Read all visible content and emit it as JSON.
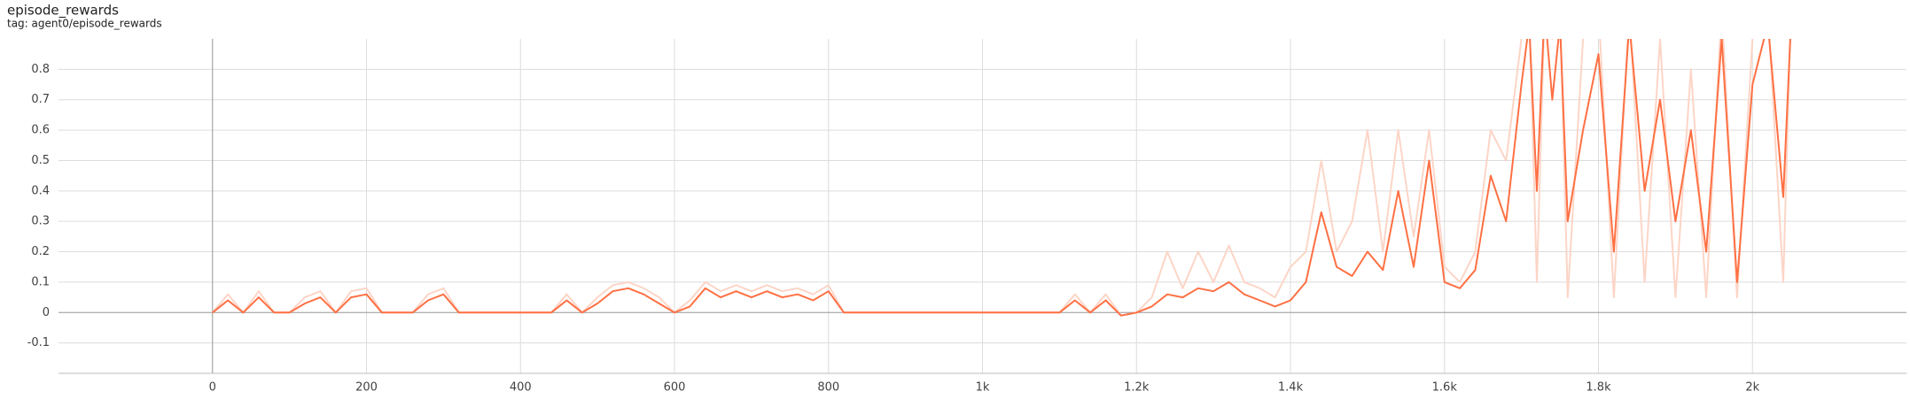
{
  "header": {
    "title": "episode_rewards",
    "tag": "tag: agent0/episode_rewards"
  },
  "chart_data": {
    "type": "line",
    "x": [
      0,
      20,
      40,
      60,
      80,
      100,
      120,
      140,
      160,
      180,
      200,
      220,
      240,
      260,
      280,
      300,
      320,
      340,
      360,
      380,
      400,
      420,
      440,
      460,
      480,
      500,
      520,
      540,
      560,
      580,
      600,
      620,
      640,
      660,
      680,
      700,
      720,
      740,
      760,
      780,
      800,
      820,
      840,
      860,
      880,
      900,
      920,
      940,
      960,
      980,
      1000,
      1020,
      1040,
      1060,
      1080,
      1100,
      1120,
      1140,
      1160,
      1180,
      1200,
      1220,
      1240,
      1260,
      1280,
      1300,
      1320,
      1340,
      1360,
      1380,
      1400,
      1420,
      1440,
      1460,
      1480,
      1500,
      1520,
      1540,
      1560,
      1580,
      1600,
      1620,
      1640,
      1660,
      1680,
      1700,
      1710,
      1720,
      1730,
      1740,
      1750,
      1760,
      1780,
      1800,
      1820,
      1840,
      1860,
      1880,
      1900,
      1920,
      1940,
      1960,
      1980,
      2000,
      2020,
      2040,
      2050
    ],
    "series": [
      {
        "color": "#fcd5c7",
        "values": [
          0,
          0.06,
          0,
          0.07,
          0,
          0,
          0.05,
          0.07,
          0,
          0.07,
          0.08,
          0,
          0,
          0,
          0.06,
          0.08,
          0,
          0,
          0,
          0,
          0,
          0,
          0,
          0.06,
          0,
          0.05,
          0.09,
          0.1,
          0.08,
          0.05,
          0,
          0.04,
          0.1,
          0.07,
          0.09,
          0.07,
          0.09,
          0.07,
          0.08,
          0.06,
          0.09,
          0,
          0,
          0,
          0,
          0,
          0,
          0,
          0,
          0,
          0,
          0,
          0,
          0,
          0,
          0,
          0.06,
          0,
          0.06,
          -0.01,
          0,
          0.05,
          0.2,
          0.08,
          0.2,
          0.1,
          0.22,
          0.1,
          0.08,
          0.05,
          0.15,
          0.2,
          0.5,
          0.2,
          0.3,
          0.6,
          0.2,
          0.6,
          0.25,
          0.6,
          0.15,
          0.1,
          0.2,
          0.6,
          0.5,
          0.9,
          1.0,
          0.1,
          1.0,
          0.9,
          1.0,
          0.05,
          0.9,
          1.0,
          0.05,
          1.0,
          0.1,
          0.9,
          0.05,
          0.8,
          0.05,
          1.0,
          0.05,
          0.9,
          1.0,
          0.1,
          1.0
        ]
      },
      {
        "color": "#ff7043",
        "values": [
          0,
          0.04,
          0,
          0.05,
          0,
          0,
          0.03,
          0.05,
          0,
          0.05,
          0.06,
          0,
          0,
          0,
          0.04,
          0.06,
          0,
          0,
          0,
          0,
          0,
          0,
          0,
          0.04,
          0,
          0.03,
          0.07,
          0.08,
          0.06,
          0.03,
          0,
          0.02,
          0.08,
          0.05,
          0.07,
          0.05,
          0.07,
          0.05,
          0.06,
          0.04,
          0.07,
          0,
          0,
          0,
          0,
          0,
          0,
          0,
          0,
          0,
          0,
          0,
          0,
          0,
          0,
          0,
          0.04,
          0,
          0.04,
          -0.01,
          0,
          0.02,
          0.06,
          0.05,
          0.08,
          0.07,
          0.1,
          0.06,
          0.04,
          0.02,
          0.04,
          0.1,
          0.33,
          0.15,
          0.12,
          0.2,
          0.14,
          0.4,
          0.15,
          0.5,
          0.1,
          0.08,
          0.14,
          0.45,
          0.3,
          0.75,
          0.95,
          0.4,
          1.0,
          0.7,
          0.95,
          0.3,
          0.6,
          0.85,
          0.2,
          0.95,
          0.4,
          0.7,
          0.3,
          0.6,
          0.2,
          0.9,
          0.1,
          0.75,
          0.95,
          0.38,
          0.95
        ]
      }
    ],
    "xlim": [
      -200,
      2200
    ],
    "ylim": [
      -0.2,
      0.9
    ],
    "xticks": [
      0,
      200,
      400,
      600,
      800,
      {
        "value": 1000,
        "label": "1k"
      },
      {
        "value": 1200,
        "label": "1.2k"
      },
      {
        "value": 1400,
        "label": "1.4k"
      },
      {
        "value": 1600,
        "label": "1.6k"
      },
      {
        "value": 1800,
        "label": "1.8k"
      },
      {
        "value": 2000,
        "label": "2k"
      }
    ],
    "yticks": [
      -0.1,
      0,
      0.1,
      0.2,
      0.3,
      0.4,
      0.5,
      0.6,
      0.7,
      0.8
    ],
    "grid": true
  }
}
